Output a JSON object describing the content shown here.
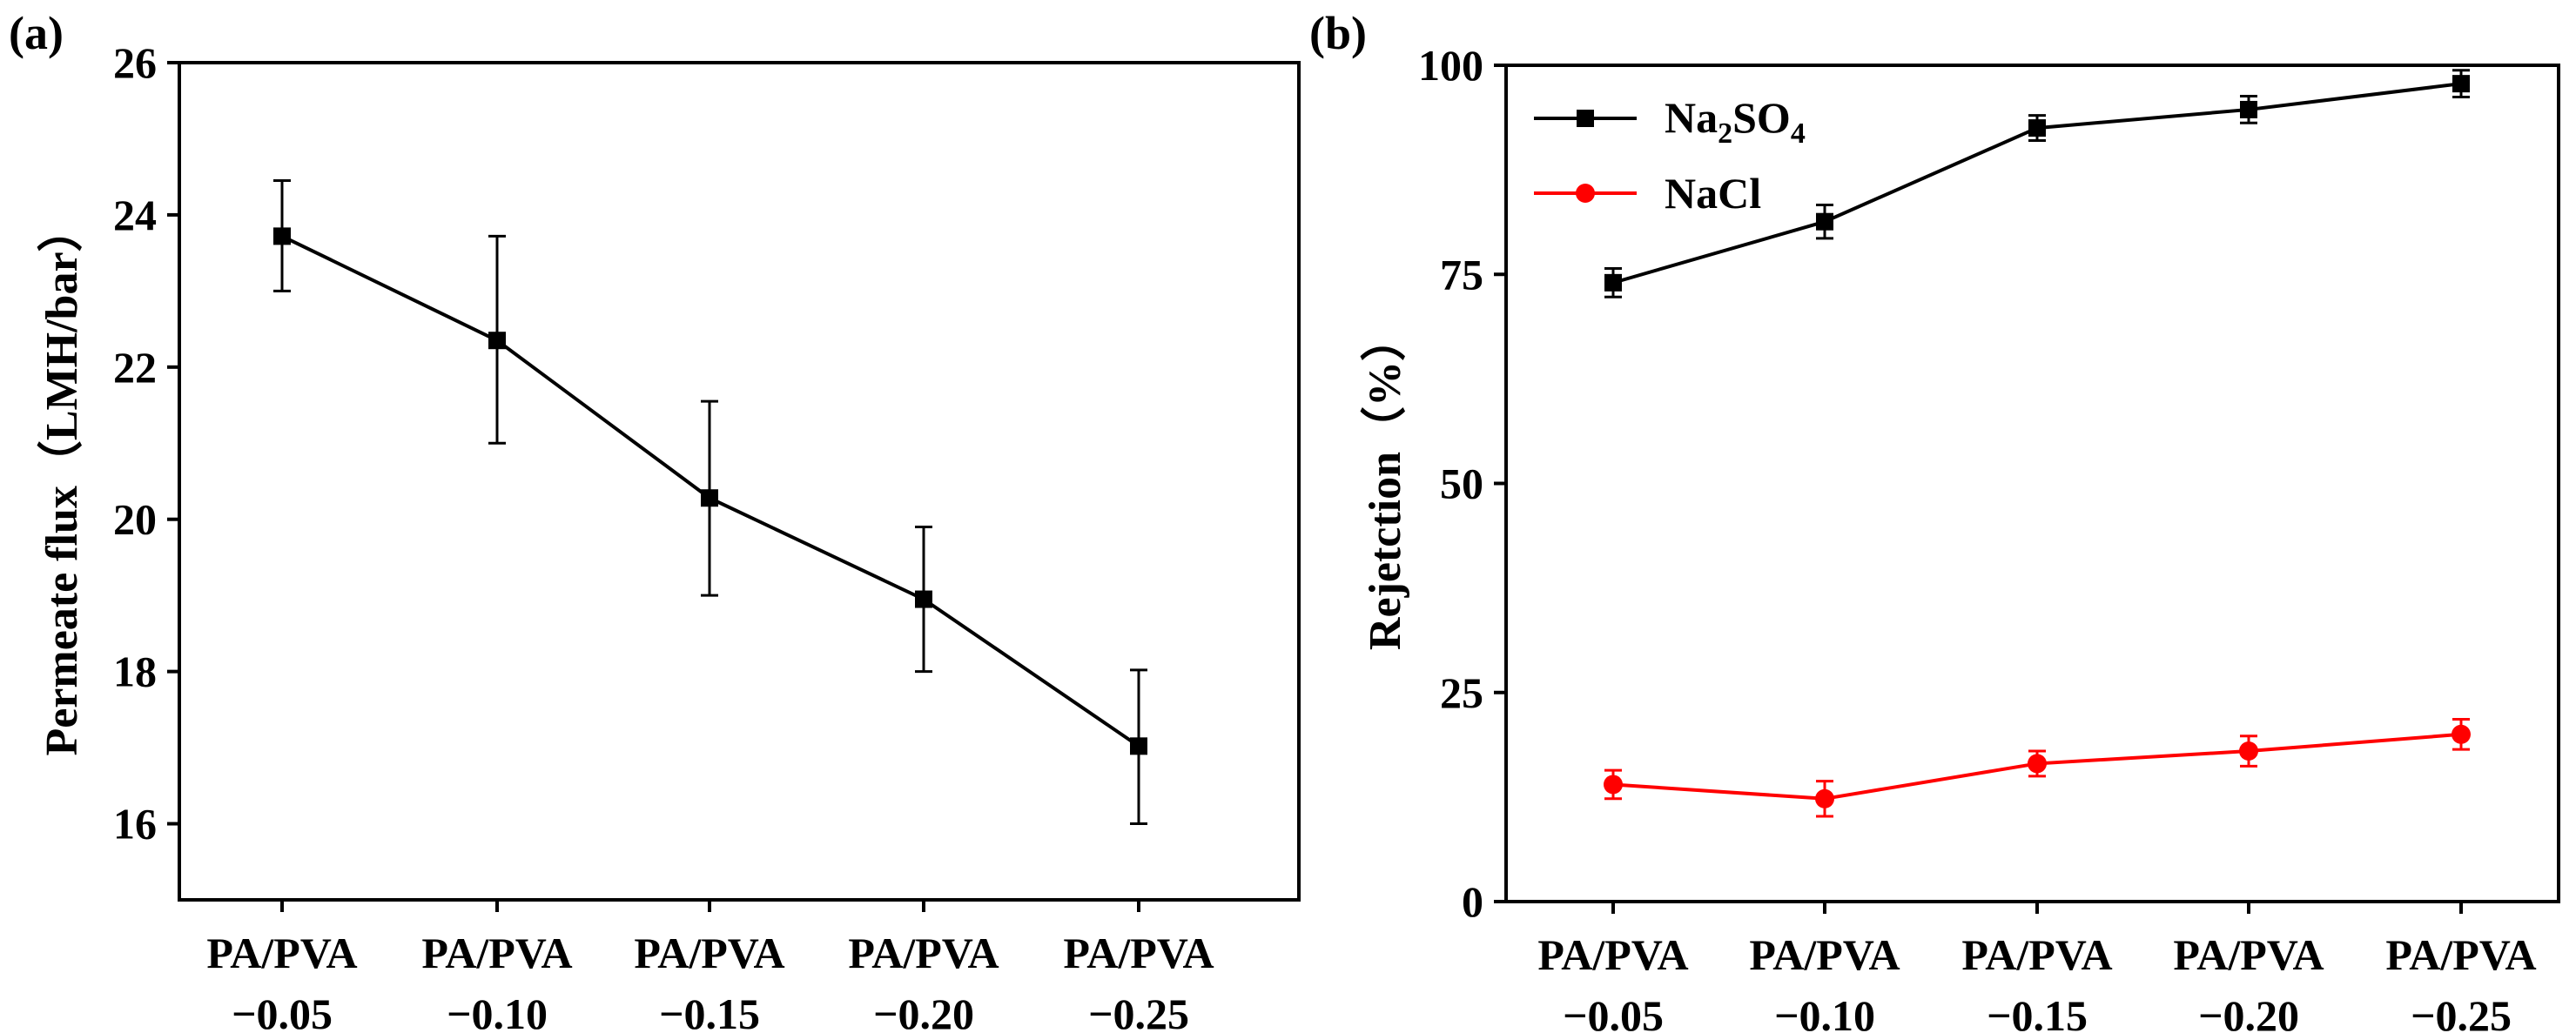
{
  "chart_data": [
    {
      "panel_label": "(a)",
      "type": "line",
      "categories": [
        [
          "PA/PVA",
          "−0.05"
        ],
        [
          "PA/PVA",
          "−0.10"
        ],
        [
          "PA/PVA",
          "−0.15"
        ],
        [
          "PA/PVA",
          "−0.20"
        ],
        [
          "PA/PVA",
          "−0.25"
        ]
      ],
      "ylabel": "Permeate flux（LMH/bar）",
      "ylim": [
        15,
        26
      ],
      "yticks": [
        "16",
        "18",
        "20",
        "22",
        "24",
        "26"
      ],
      "series": [
        {
          "name": "Permeate flux",
          "color": "#000000",
          "marker": "square",
          "values": [
            23.72,
            22.35,
            20.28,
            18.95,
            17.02
          ],
          "err_low": [
            23.0,
            21.0,
            19.0,
            18.0,
            16.0
          ],
          "err_high": [
            24.45,
            23.72,
            21.55,
            19.9,
            18.02
          ]
        }
      ]
    },
    {
      "panel_label": "(b)",
      "type": "line",
      "categories": [
        [
          "PA/PVA",
          "−0.05"
        ],
        [
          "PA/PVA",
          "−0.10"
        ],
        [
          "PA/PVA",
          "−0.15"
        ],
        [
          "PA/PVA",
          "−0.20"
        ],
        [
          "PA/PVA",
          "−0.25"
        ]
      ],
      "ylabel": "Rejetction（%）",
      "ylim": [
        0,
        100
      ],
      "yticks": [
        "0",
        "25",
        "50",
        "75",
        "100"
      ],
      "legend_position": "top-left",
      "series": [
        {
          "name": "Na2SO4",
          "label_main": "Na",
          "label_sub1": "2",
          "label_mid": "SO",
          "label_sub2": "4",
          "color": "#000000",
          "marker": "square",
          "values": [
            74.0,
            81.3,
            92.5,
            94.7,
            97.8
          ],
          "err_low": [
            72.3,
            79.3,
            91.0,
            93.1,
            96.2
          ],
          "err_high": [
            75.7,
            83.3,
            94.0,
            96.3,
            99.4
          ]
        },
        {
          "name": "NaCl",
          "color": "#ff0000",
          "marker": "circle",
          "values": [
            14.0,
            12.3,
            16.5,
            18.0,
            20.0
          ],
          "err_low": [
            12.3,
            10.2,
            15.0,
            16.2,
            18.2
          ],
          "err_high": [
            15.7,
            14.4,
            18.0,
            19.8,
            21.8
          ]
        }
      ]
    }
  ]
}
